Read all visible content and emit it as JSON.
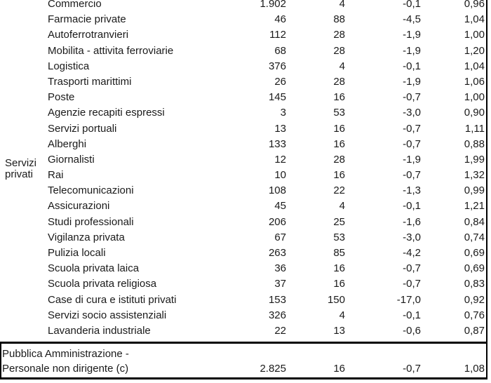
{
  "table": {
    "group_label": "Servizi privati",
    "rows": [
      {
        "label": "Commercio",
        "values": [
          "1.902",
          "4",
          "-0,1",
          "0,96"
        ]
      },
      {
        "label": "Farmacie private",
        "values": [
          "46",
          "88",
          "-4,5",
          "1,04"
        ]
      },
      {
        "label": "Autoferrotranvieri",
        "values": [
          "112",
          "28",
          "-1,9",
          "1,00"
        ]
      },
      {
        "label": "Mobilita - attivita ferroviarie",
        "values": [
          "68",
          "28",
          "-1,9",
          "1,20"
        ]
      },
      {
        "label": "Logistica",
        "values": [
          "376",
          "4",
          "-0,1",
          "1,04"
        ]
      },
      {
        "label": "Trasporti marittimi",
        "values": [
          "26",
          "28",
          "-1,9",
          "1,06"
        ]
      },
      {
        "label": "Poste",
        "values": [
          "145",
          "16",
          "-0,7",
          "1,00"
        ]
      },
      {
        "label": "Agenzie recapiti espressi",
        "values": [
          "3",
          "53",
          "-3,0",
          "0,90"
        ]
      },
      {
        "label": "Servizi portuali",
        "values": [
          "13",
          "16",
          "-0,7",
          "1,11"
        ]
      },
      {
        "label": "Alberghi",
        "values": [
          "133",
          "16",
          "-0,7",
          "0,88"
        ]
      },
      {
        "label": "Giornalisti",
        "values": [
          "12",
          "28",
          "-1,9",
          "1,99"
        ]
      },
      {
        "label": "Rai",
        "values": [
          "10",
          "16",
          "-0,7",
          "1,32"
        ]
      },
      {
        "label": "Telecomunicazioni",
        "values": [
          "108",
          "22",
          "-1,3",
          "0,99"
        ]
      },
      {
        "label": "Assicurazioni",
        "values": [
          "45",
          "4",
          "-0,1",
          "1,21"
        ]
      },
      {
        "label": "Studi professionali",
        "values": [
          "206",
          "25",
          "-1,6",
          "0,84"
        ]
      },
      {
        "label": "Vigilanza privata",
        "values": [
          "67",
          "53",
          "-3,0",
          "0,74"
        ]
      },
      {
        "label": "Pulizia locali",
        "values": [
          "263",
          "85",
          "-4,2",
          "0,69"
        ]
      },
      {
        "label": "Scuola privata laica",
        "values": [
          "36",
          "16",
          "-0,7",
          "0,69"
        ]
      },
      {
        "label": "Scuola privata religiosa",
        "values": [
          "37",
          "16",
          "-0,7",
          "0,83"
        ]
      },
      {
        "label": "Case di cura e istituti privati",
        "values": [
          "153",
          "150",
          "-17,0",
          "0,92"
        ]
      },
      {
        "label": "Servizi socio assistenziali",
        "values": [
          "326",
          "4",
          "-0,1",
          "0,76"
        ]
      },
      {
        "label": "Lavanderia industriale",
        "values": [
          "22",
          "13",
          "-0,6",
          "0,87"
        ]
      }
    ],
    "footer_row": {
      "label_lines": [
        "Pubblica Amministrazione -",
        "Personale non dirigente (c)"
      ],
      "values": [
        "2.825",
        "16",
        "-0,7",
        "1,08"
      ]
    },
    "border_color": "#000000",
    "text_color": "#1a1a1a"
  }
}
